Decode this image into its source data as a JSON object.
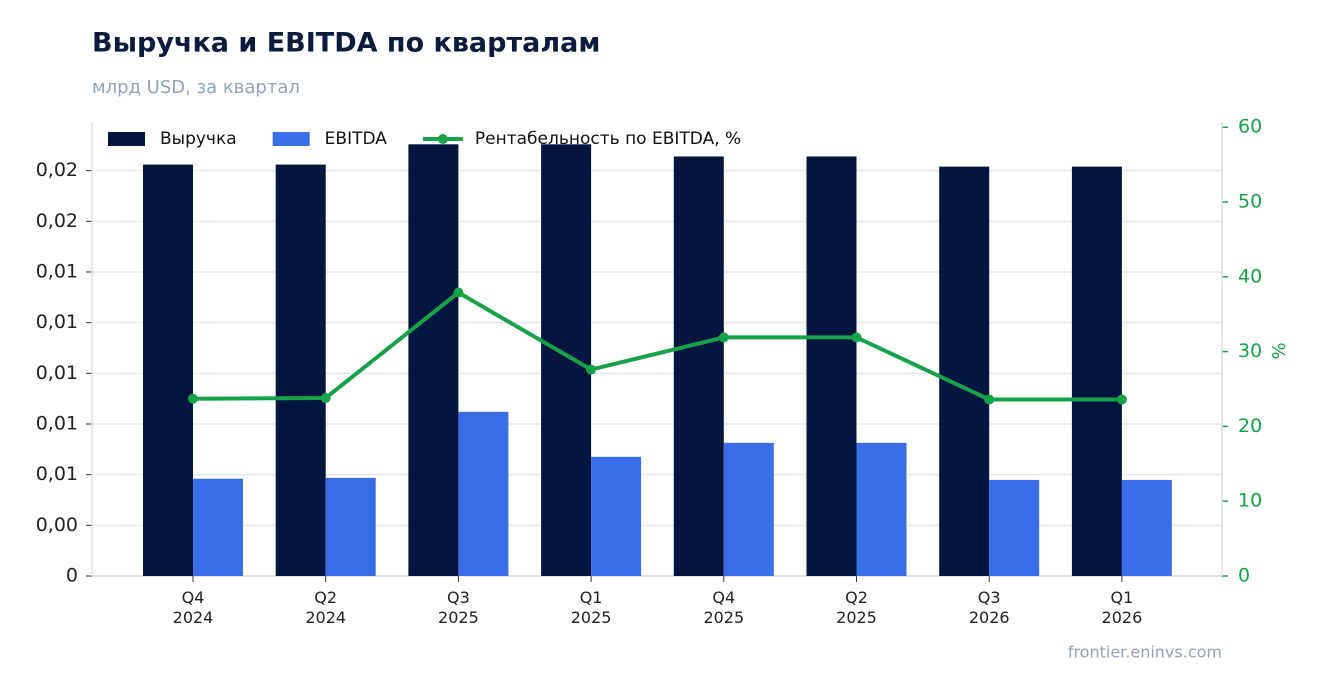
{
  "chart_data": {
    "type": "bar_line",
    "title": "Выручка и EBITDA по кварталам",
    "subtitle": "млрд USD, за квартал",
    "categories": [
      "Q4\n2024",
      "Q2\n2024",
      "Q3\n2025",
      "Q1\n2025",
      "Q4\n2025",
      "Q2\n2025",
      "Q3\n2026",
      "Q1\n2026"
    ],
    "series": [
      {
        "name": "Выручка",
        "type": "bar",
        "color": "#03163f",
        "values": [
          0.0203,
          0.0203,
          0.0213,
          0.0213,
          0.0207,
          0.0207,
          0.0202,
          0.0202
        ]
      },
      {
        "name": "EBITDA",
        "type": "bar",
        "color": "#3a6de8",
        "values": [
          0.0048,
          0.00484,
          0.0081,
          0.00588,
          0.00657,
          0.00657,
          0.00474,
          0.00474
        ]
      },
      {
        "name": "Рентабельность по EBITDA, %",
        "type": "line",
        "axis": "y2",
        "color": "#17a24a",
        "values": [
          23.7,
          23.8,
          37.9,
          27.6,
          31.9,
          31.9,
          23.6,
          23.6
        ]
      }
    ],
    "ylim": [
      0,
      0.0224
    ],
    "yticks": [
      0,
      {
        "value": 0.0025,
        "label": "0,00"
      },
      {
        "value": 0.005,
        "label": "0,01"
      },
      {
        "value": 0.0075,
        "label": "0,01"
      },
      {
        "value": 0.01,
        "label": "0,01"
      },
      {
        "value": 0.0125,
        "label": "0,01"
      },
      {
        "value": 0.015,
        "label": "0,01"
      },
      {
        "value": 0.0175,
        "label": "0,02"
      },
      {
        "value": 0.02,
        "label": "0,02"
      }
    ],
    "y2label": "%",
    "y2lim": [
      0,
      60.7
    ],
    "y2ticks": [
      0,
      10,
      20,
      30,
      40,
      50,
      60
    ],
    "grid": true,
    "legend": "top-left",
    "source": "frontier.eninvs.com"
  }
}
